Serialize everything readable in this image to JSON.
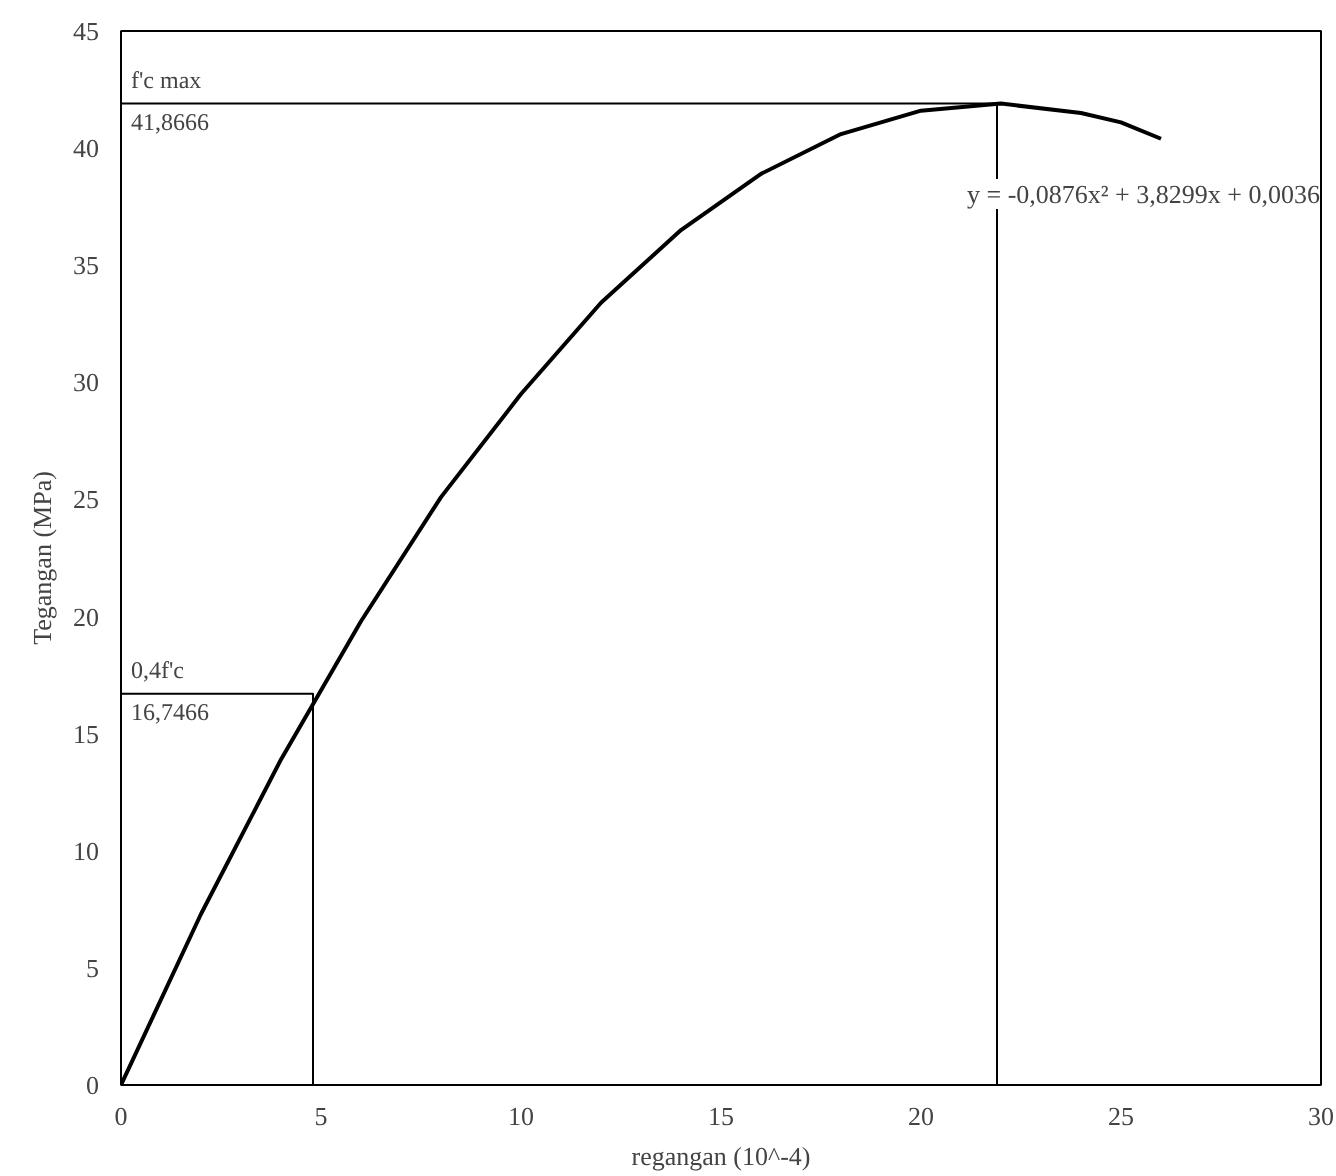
{
  "chart_data": {
    "type": "line",
    "xlabel": "regangan (10^-4)",
    "ylabel": "Tegangan (MPa)",
    "xlim": [
      0,
      30
    ],
    "ylim": [
      0,
      45
    ],
    "xticks": [
      0,
      5,
      10,
      15,
      20,
      25,
      30
    ],
    "yticks": [
      0,
      5,
      10,
      15,
      20,
      25,
      30,
      35,
      40,
      45
    ],
    "grid": false,
    "marker": "none",
    "line_style": "solid",
    "series": [
      {
        "color": "#000000",
        "x": [
          0,
          2,
          4,
          6,
          8,
          10,
          12,
          14,
          16,
          18,
          20,
          22,
          24,
          25,
          26
        ],
        "values": [
          0,
          7.3,
          13.9,
          19.8,
          25.1,
          29.5,
          33.4,
          36.5,
          38.9,
          40.6,
          41.6,
          41.9,
          41.5,
          41.1,
          40.4
        ]
      },
      {
        "color": "#000000",
        "x": [
          0,
          21.9,
          21.9
        ],
        "values": [
          41.9,
          41.9,
          0
        ]
      },
      {
        "color": "#000000",
        "x": [
          0,
          4.8,
          4.8
        ],
        "values": [
          16.7,
          16.7,
          0
        ]
      }
    ],
    "annotations": [
      "f'c max",
      "41,8666",
      "0,4f'c",
      "16,7466",
      "y = -0,0876x² + 3,8299x + 0,0036"
    ]
  }
}
